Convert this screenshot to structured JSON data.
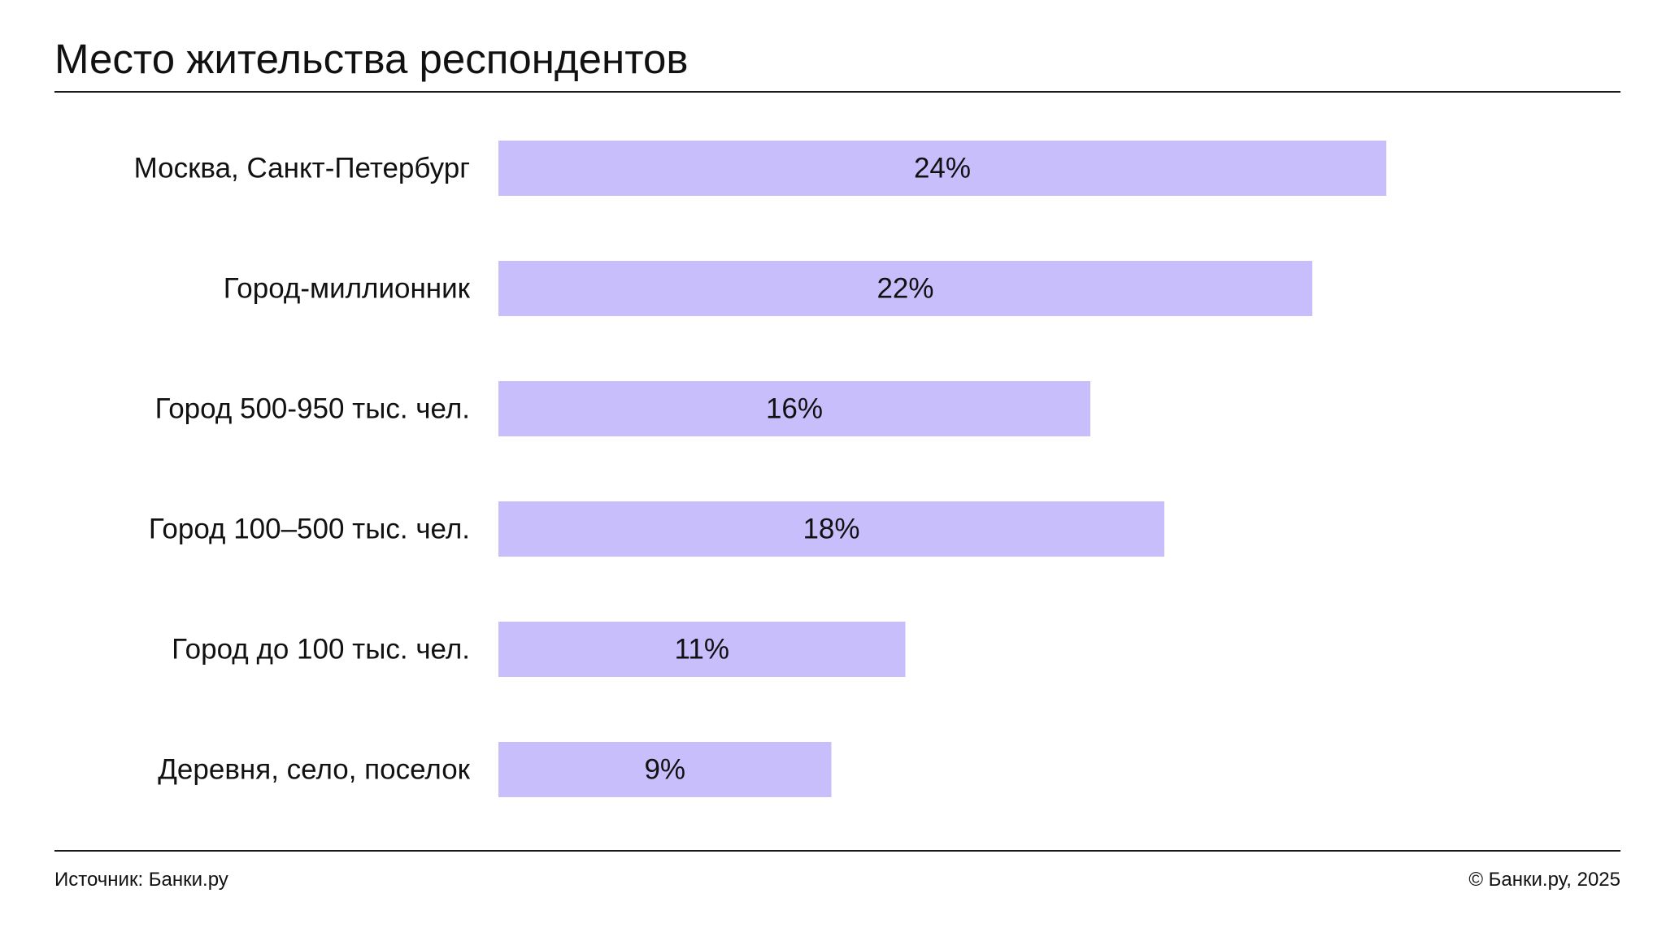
{
  "title": "Место жительства респондентов",
  "footer": {
    "source": "Источник: Банки.ру",
    "copyright": "© Банки.ру, 2025"
  },
  "colors": {
    "bar": "#c8befc",
    "text": "#111111",
    "rule": "#1a1a1a"
  },
  "chart_data": {
    "type": "bar",
    "orientation": "horizontal",
    "title": "Место жительства респондентов",
    "categories": [
      "Москва, Санкт-Петербург",
      "Город-миллионник",
      "Город 500-950 тыс. чел.",
      "Город 100–500 тыс. чел.",
      "Город до 100 тыс. чел.",
      "Деревня, село, поселок"
    ],
    "values": [
      24,
      22,
      16,
      18,
      11,
      9
    ],
    "data_labels": [
      "24%",
      "22%",
      "16%",
      "18%",
      "11%",
      "9%"
    ],
    "unit": "%",
    "xlim": [
      0,
      30
    ],
    "grid": false,
    "legend": "none"
  }
}
